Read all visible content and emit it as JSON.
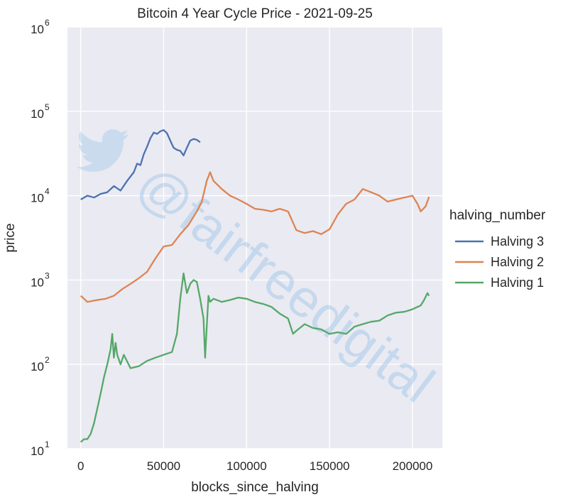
{
  "chart_data": {
    "type": "line",
    "title": "Bitcoin 4 Year Cycle Price - 2021-09-25",
    "xlabel": "blocks_since_halving",
    "ylabel": "price",
    "yscale": "log",
    "xlim": [
      -8000,
      218000
    ],
    "ylim": [
      10,
      1000000
    ],
    "x_ticks": [
      0,
      50000,
      100000,
      150000,
      200000
    ],
    "x_tick_labels": [
      "0",
      "50000",
      "100000",
      "150000",
      "200000"
    ],
    "y_ticks": [
      10,
      100,
      1000,
      10000,
      100000,
      1000000
    ],
    "y_tick_labels": [
      {
        "base": "10",
        "exp": "1"
      },
      {
        "base": "10",
        "exp": "2"
      },
      {
        "base": "10",
        "exp": "3"
      },
      {
        "base": "10",
        "exp": "4"
      },
      {
        "base": "10",
        "exp": "5"
      },
      {
        "base": "10",
        "exp": "6"
      }
    ],
    "grid": true,
    "legend": {
      "title": "halving_number",
      "position": "right"
    },
    "watermark": "@fairfreedigital",
    "series": [
      {
        "name": "Halving 3",
        "color": "#4c72b0",
        "x": [
          0,
          4000,
          8000,
          12000,
          16000,
          20000,
          24000,
          28000,
          32000,
          34000,
          36000,
          38000,
          40000,
          42000,
          44000,
          46000,
          48000,
          50000,
          52000,
          54000,
          56000,
          58000,
          60000,
          62000,
          64000,
          66000,
          68000,
          70000,
          72000
        ],
        "y": [
          9000,
          10000,
          9500,
          10500,
          11000,
          13000,
          11500,
          15000,
          19000,
          24000,
          23000,
          31000,
          38000,
          48000,
          56000,
          54000,
          58000,
          60000,
          55000,
          45000,
          37000,
          35000,
          34000,
          30000,
          37000,
          45000,
          47000,
          46000,
          43000
        ]
      },
      {
        "name": "Halving 2",
        "color": "#dd8452",
        "x": [
          0,
          2000,
          4000,
          10000,
          15000,
          20000,
          25000,
          30000,
          35000,
          40000,
          45000,
          50000,
          55000,
          60000,
          65000,
          70000,
          73000,
          76000,
          78000,
          80000,
          85000,
          90000,
          95000,
          100000,
          105000,
          110000,
          115000,
          120000,
          125000,
          130000,
          135000,
          140000,
          145000,
          150000,
          155000,
          160000,
          165000,
          170000,
          175000,
          180000,
          185000,
          190000,
          195000,
          200000,
          203000,
          205000,
          208000,
          210000
        ],
        "y": [
          650,
          600,
          550,
          580,
          600,
          650,
          780,
          900,
          1050,
          1250,
          1800,
          2500,
          2600,
          3500,
          4500,
          6500,
          8500,
          15000,
          19000,
          15000,
          12000,
          10000,
          9000,
          8000,
          7000,
          6800,
          6500,
          7000,
          6500,
          3900,
          3600,
          3800,
          3500,
          4000,
          6000,
          8000,
          9000,
          12000,
          11000,
          10000,
          8500,
          9000,
          9500,
          10000,
          8000,
          6500,
          7500,
          9700
        ]
      },
      {
        "name": "Halving 1",
        "color": "#55a868",
        "x": [
          0,
          2000,
          4000,
          6000,
          8000,
          10000,
          12000,
          14000,
          16000,
          18000,
          19000,
          20000,
          21000,
          22000,
          24000,
          26000,
          30000,
          35000,
          40000,
          45000,
          50000,
          55000,
          58000,
          60000,
          62000,
          64000,
          66000,
          68000,
          70000,
          72000,
          74000,
          75000,
          76000,
          77000,
          78000,
          80000,
          85000,
          90000,
          95000,
          100000,
          105000,
          110000,
          115000,
          120000,
          125000,
          128000,
          130000,
          135000,
          140000,
          145000,
          150000,
          155000,
          160000,
          165000,
          170000,
          175000,
          180000,
          185000,
          190000,
          195000,
          200000,
          205000,
          207000,
          209000,
          210000
        ],
        "y": [
          12,
          13,
          13,
          15,
          20,
          30,
          45,
          70,
          100,
          150,
          230,
          120,
          180,
          130,
          100,
          130,
          90,
          95,
          110,
          120,
          130,
          140,
          230,
          600,
          1200,
          700,
          900,
          1000,
          950,
          600,
          350,
          120,
          280,
          650,
          550,
          600,
          550,
          580,
          620,
          600,
          550,
          520,
          480,
          400,
          350,
          230,
          250,
          300,
          270,
          260,
          230,
          240,
          230,
          280,
          300,
          320,
          330,
          380,
          410,
          420,
          450,
          500,
          580,
          700,
          650
        ]
      }
    ]
  }
}
